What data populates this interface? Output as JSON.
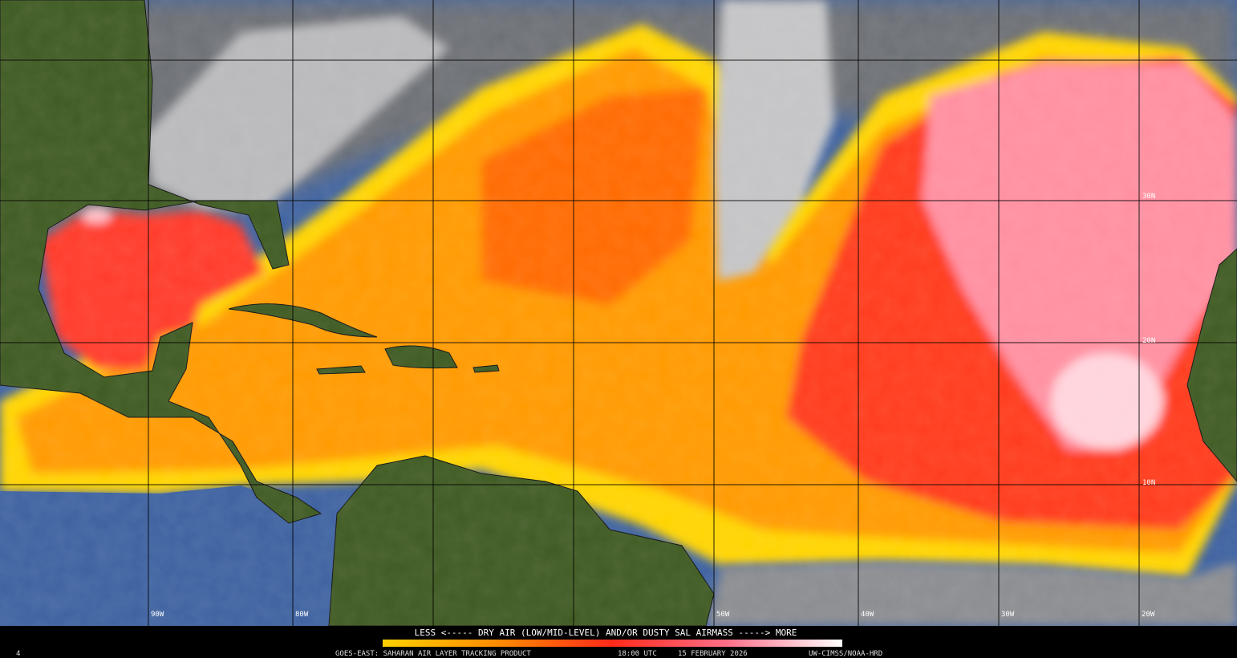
{
  "map": {
    "latitude_labels": [
      "30N",
      "20N",
      "10N"
    ],
    "longitude_labels": [
      "90W",
      "80W",
      "50W",
      "40W",
      "30W",
      "20W"
    ],
    "legend": {
      "text": "LESS <----- DRY AIR (LOW/MID-LEVEL) AND/OR DUSTY SAL AIRMASS -----> MORE"
    },
    "footer": {
      "frame": "4",
      "product": "GOES-EAST: SAHARAN AIR LAYER TRACKING PRODUCT",
      "time": "18:00 UTC",
      "date": "15 FEBRUARY 2026",
      "credit": "UW-CIMSS/NOAA-HRD"
    }
  }
}
